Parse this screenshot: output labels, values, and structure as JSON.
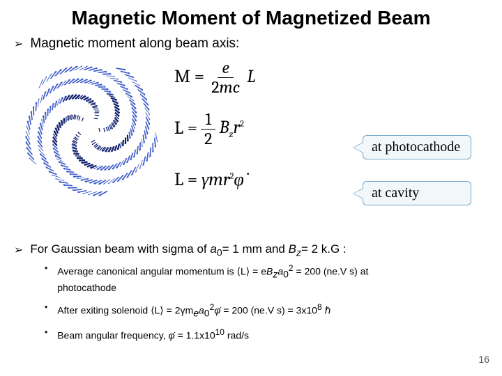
{
  "title": "Magnetic Moment of Magnetized Beam",
  "bullet1": "Magnetic moment along beam axis:",
  "equations": {
    "eq1_lhs": "M =",
    "eq1_num": "e",
    "eq1_den": "2mc",
    "eq1_tail": "L",
    "eq2_lhs": "L =",
    "eq2_num": "1",
    "eq2_den": "2",
    "eq2_tail_a": "B",
    "eq2_tail_sub": "z",
    "eq2_tail_b": "r",
    "eq2_tail_sup": "2",
    "eq3_lhs": "L = ",
    "eq3_a": "γmr",
    "eq3_sup": "2",
    "eq3_b": "φ̇"
  },
  "callouts": {
    "photocathode": "at photocathode",
    "cavity": "at cavity"
  },
  "gaussian": {
    "prefix": "For Gaussian beam with sigma of ",
    "a0": "a",
    "a0sub": "0",
    "a0val": "= 1 mm and ",
    "bz": "B",
    "bzsub": "z",
    "bzval": "= 2 k.G :"
  },
  "sub1": {
    "a": "Average canonical angular momentum is ",
    "expr_open": "⟨L⟩ = e",
    "bz": "B",
    "bzsub": "z",
    "a0": "a",
    "a0sub": "0",
    "a0sup": "2",
    "val": " = 200 (ne.V s) at",
    "line2": "photocathode"
  },
  "sub2": {
    "a": "After exiting solenoid ",
    "expr": "⟨L⟩ = 2γm",
    "me_sub": "e",
    "a0": "a",
    "a0sub": "0",
    "a0sup": "2",
    "phi": "φ̇",
    "val": " = 200 (ne.V s) = 3x10",
    "exp": "8",
    "hbar": " ℏ"
  },
  "sub3": {
    "a": "Beam angular frequency, ",
    "phi": "φ̇",
    "val": " = 1.1x10",
    "exp": "10",
    "unit": " rad/s"
  },
  "vortex": {
    "n_arrows": 420,
    "color": "#2b4cc4",
    "core_color": "#0b1a6b",
    "bg": "#ffffff"
  },
  "page_number": "16"
}
